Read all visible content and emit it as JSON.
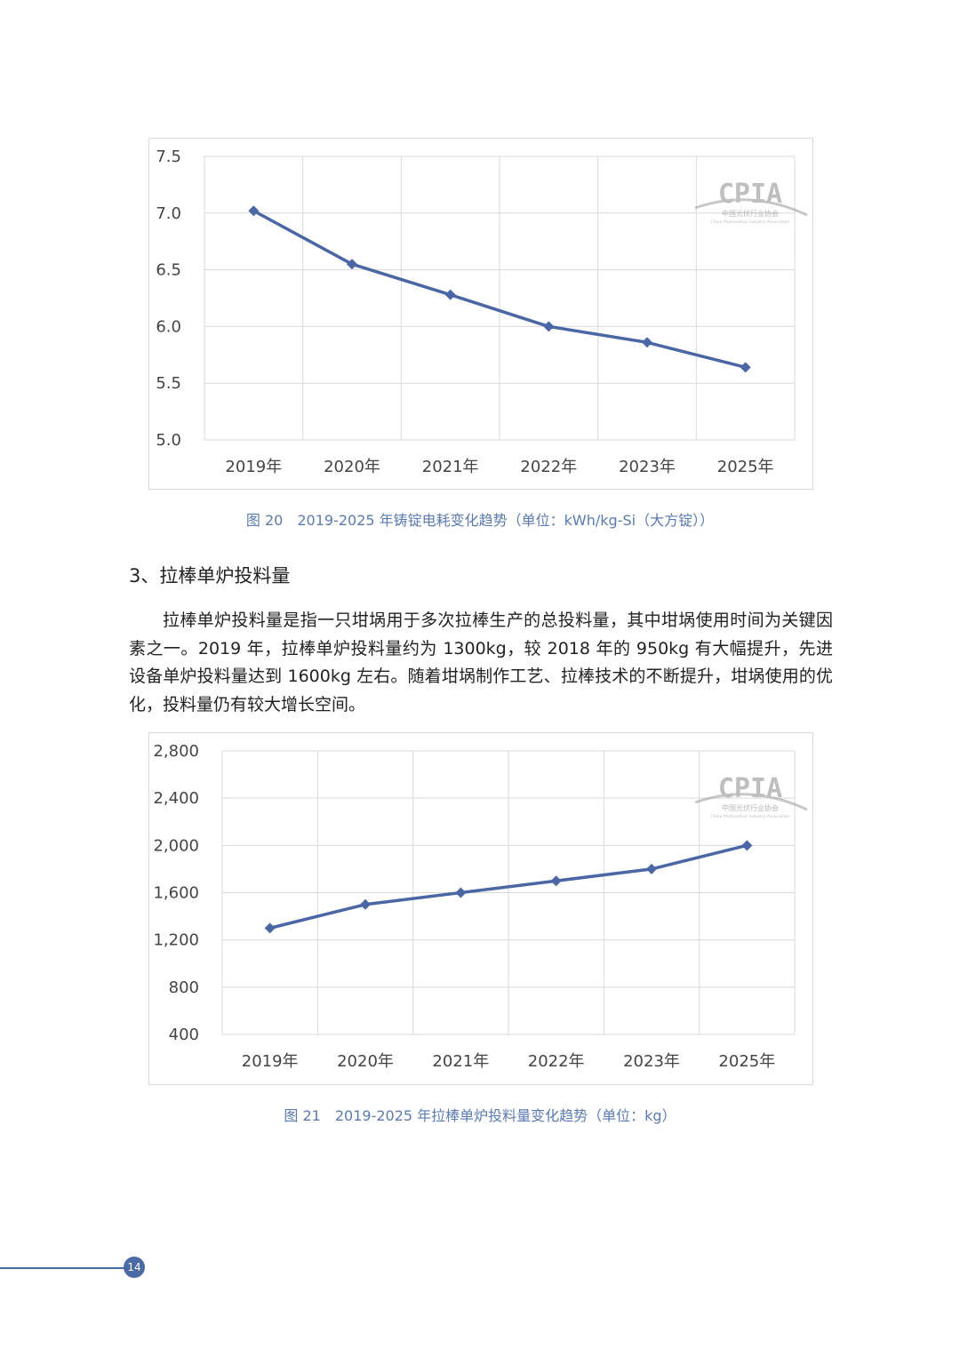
{
  "figure20": {
    "caption": "图 20　2019-2025 年铸锭电耗变化趋势（单位：kWh/kg-Si（大方锭））",
    "watermark": {
      "main": "CPIA",
      "sub": "中国光伏行业协会",
      "sub_en": "China Photovoltaic Industry Association"
    }
  },
  "section": {
    "heading": "3、拉棒单炉投料量",
    "paragraph": "拉棒单炉投料量是指一只坩埚用于多次拉棒生产的总投料量，其中坩埚使用时间为关键因素之一。2019 年，拉棒单炉投料量约为 1300kg，较 2018 年的 950kg 有大幅提升，先进设备单炉投料量达到 1600kg 左右。随着坩埚制作工艺、拉棒技术的不断提升，坩埚使用的优化，投料量仍有较大增长空间。"
  },
  "figure21": {
    "caption": "图  21　2019-2025 年拉棒单炉投料量变化趋势（单位：kg）",
    "watermark": {
      "main": "CPIA",
      "sub": "中国光伏行业协会",
      "sub_en": "China Photovoltaic Industry Association"
    }
  },
  "page_number": "14",
  "colors": {
    "series": "#4a66a5",
    "grid": "#d9d9d9",
    "caption": "#5b7bb0",
    "accent": "#4a6aa5"
  },
  "chart_data": [
    {
      "type": "line",
      "categories": [
        "2019年",
        "2020年",
        "2021年",
        "2022年",
        "2023年",
        "2025年"
      ],
      "series": [
        {
          "values": [
            7.02,
            6.55,
            6.28,
            6.0,
            5.86,
            5.64
          ]
        }
      ],
      "yticks": [
        "5.0",
        "5.5",
        "6.0",
        "6.5",
        "7.0",
        "7.5"
      ],
      "ylim": [
        5.0,
        7.5
      ],
      "grid": true,
      "marker": "diamond"
    },
    {
      "type": "line",
      "categories": [
        "2019年",
        "2020年",
        "2021年",
        "2022年",
        "2023年",
        "2025年"
      ],
      "series": [
        {
          "values": [
            1300,
            1500,
            1600,
            1700,
            1800,
            2000
          ]
        }
      ],
      "yticks": [
        "400",
        "800",
        "1,200",
        "1,600",
        "2,000",
        "2,400",
        "2,800"
      ],
      "ylim": [
        400,
        2800
      ],
      "grid": true,
      "marker": "diamond"
    }
  ]
}
